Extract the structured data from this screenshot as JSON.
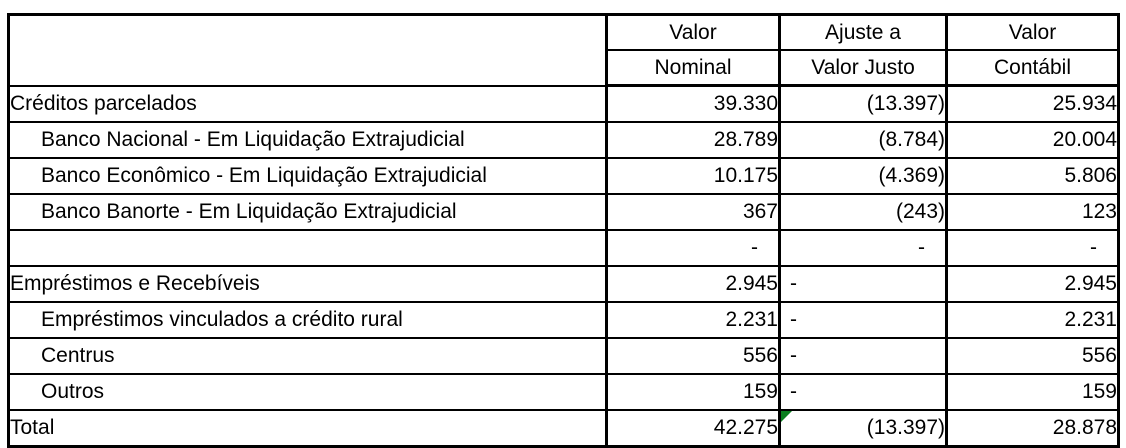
{
  "colors": {
    "border": "#000000",
    "background": "#ffffff",
    "text": "#000000",
    "error_indicator": "#0a7d1e"
  },
  "table": {
    "header": {
      "col1": [
        "",
        ""
      ],
      "col2": [
        "Valor",
        "Nominal"
      ],
      "col3": [
        "Ajuste a",
        "Valor Justo"
      ],
      "col4": [
        "Valor",
        "Contábil"
      ]
    },
    "rows": [
      {
        "label": "Créditos parcelados",
        "indent": false,
        "nominal": "39.330",
        "ajuste": "(13.397)",
        "contabil": "25.934"
      },
      {
        "label": "Banco Nacional - Em Liquidação Extrajudicial",
        "indent": true,
        "nominal": "28.789",
        "ajuste": "(8.784)",
        "contabil": "20.004"
      },
      {
        "label": "Banco Econômico - Em Liquidação Extrajudicial",
        "indent": true,
        "nominal": "10.175",
        "ajuste": "(4.369)",
        "contabil": "5.806"
      },
      {
        "label": "Banco Banorte - Em Liquidação Extrajudicial",
        "indent": true,
        "nominal": "367",
        "ajuste": "(243)",
        "contabil": "123"
      },
      {
        "label": "",
        "indent": false,
        "nominal": "-",
        "ajuste": "-",
        "contabil": "-",
        "zero_dash": true
      },
      {
        "label": "Empréstimos e Recebíveis",
        "indent": false,
        "nominal": "2.945",
        "ajuste": "-",
        "contabil": "2.945",
        "ajuste_left": true
      },
      {
        "label": "Empréstimos vinculados a crédito rural",
        "indent": true,
        "nominal": "2.231",
        "ajuste": "-",
        "contabil": "2.231",
        "ajuste_left": true
      },
      {
        "label": "Centrus",
        "indent": true,
        "nominal": "556",
        "ajuste": "-",
        "contabil": "556",
        "ajuste_left": true
      },
      {
        "label": "Outros",
        "indent": true,
        "nominal": "159",
        "ajuste": "-",
        "contabil": "159",
        "ajuste_left": true
      },
      {
        "label": "Total",
        "indent": false,
        "nominal": "42.275",
        "ajuste": "(13.397)",
        "contabil": "28.878",
        "error_indicator": true
      }
    ]
  }
}
